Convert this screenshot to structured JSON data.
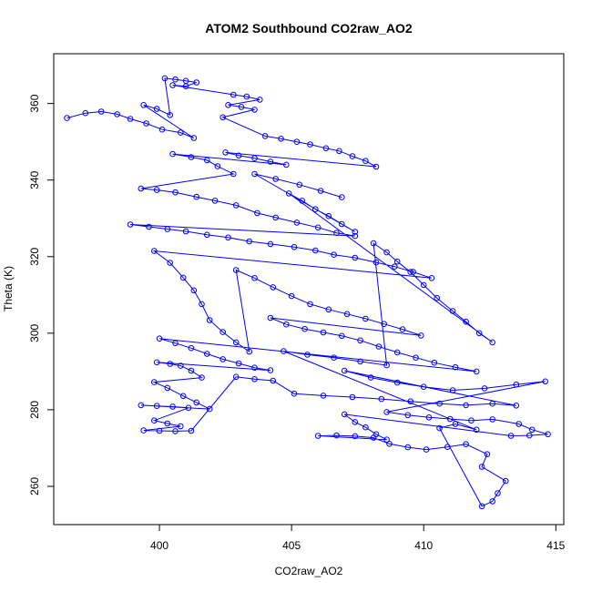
{
  "chart_data": {
    "type": "scatter",
    "title": "ATOM2 Southbound CO2raw_AO2",
    "xlabel": "CO2raw_AO2",
    "ylabel": "Theta (K)",
    "xlim": [
      396,
      415.3
    ],
    "ylim": [
      250,
      373
    ],
    "xticks": [
      400,
      405,
      410,
      415
    ],
    "yticks": [
      260,
      280,
      300,
      320,
      340,
      360
    ],
    "grid": false,
    "legend": "none",
    "marker": "open-circle",
    "connected": true,
    "series": [
      {
        "color": "#0000ff",
        "points": [
          [
            396.5,
            356.2
          ],
          [
            397.2,
            357.5
          ],
          [
            397.8,
            357.9
          ],
          [
            398.4,
            357.2
          ],
          [
            398.9,
            356.0
          ],
          [
            399.5,
            354.8
          ],
          [
            400.1,
            353.2
          ],
          [
            400.8,
            352.4
          ],
          [
            401.3,
            351.0
          ],
          [
            399.4,
            359.6
          ],
          [
            399.9,
            358.6
          ],
          [
            400.4,
            357.0
          ],
          [
            400.2,
            366.6
          ],
          [
            400.6,
            366.3
          ],
          [
            401.0,
            365.9
          ],
          [
            401.4,
            365.5
          ],
          [
            401.0,
            364.5
          ],
          [
            400.5,
            364.8
          ],
          [
            402.8,
            362.3
          ],
          [
            403.3,
            361.8
          ],
          [
            403.8,
            361.0
          ],
          [
            402.6,
            359.6
          ],
          [
            403.1,
            359.1
          ],
          [
            403.6,
            358.4
          ],
          [
            402.4,
            356.4
          ],
          [
            404.0,
            351.5
          ],
          [
            404.6,
            350.8
          ],
          [
            405.2,
            350.0
          ],
          [
            405.7,
            349.3
          ],
          [
            406.3,
            348.3
          ],
          [
            406.8,
            347.6
          ],
          [
            407.3,
            346.2
          ],
          [
            407.8,
            345.0
          ],
          [
            408.2,
            343.5
          ],
          [
            402.5,
            347.2
          ],
          [
            403.0,
            346.4
          ],
          [
            403.6,
            345.7
          ],
          [
            404.2,
            344.8
          ],
          [
            404.8,
            344.0
          ],
          [
            400.5,
            346.8
          ],
          [
            401.2,
            346.0
          ],
          [
            401.8,
            345.2
          ],
          [
            402.2,
            343.6
          ],
          [
            402.8,
            341.6
          ],
          [
            399.3,
            337.8
          ],
          [
            399.9,
            337.4
          ],
          [
            400.6,
            336.8
          ],
          [
            401.4,
            335.6
          ],
          [
            402.1,
            334.6
          ],
          [
            402.9,
            333.4
          ],
          [
            403.7,
            331.4
          ],
          [
            404.4,
            330.2
          ],
          [
            405.2,
            328.9
          ],
          [
            406.0,
            327.6
          ],
          [
            406.7,
            326.2
          ],
          [
            407.4,
            325.4
          ],
          [
            398.9,
            328.4
          ],
          [
            399.6,
            327.8
          ],
          [
            400.3,
            327.2
          ],
          [
            401.0,
            326.6
          ],
          [
            401.8,
            325.7
          ],
          [
            402.6,
            325.0
          ],
          [
            403.4,
            324.0
          ],
          [
            404.2,
            323.3
          ],
          [
            405.1,
            322.5
          ],
          [
            405.9,
            321.6
          ],
          [
            406.6,
            320.5
          ],
          [
            407.4,
            319.7
          ],
          [
            408.2,
            318.5
          ],
          [
            408.9,
            317.4
          ],
          [
            409.6,
            316.0
          ],
          [
            410.3,
            314.4
          ],
          [
            399.8,
            321.5
          ],
          [
            400.4,
            318.4
          ],
          [
            400.9,
            314.5
          ],
          [
            401.3,
            311.2
          ],
          [
            401.6,
            307.6
          ],
          [
            401.9,
            303.4
          ],
          [
            402.4,
            300.3
          ],
          [
            402.9,
            297.6
          ],
          [
            403.4,
            295.2
          ],
          [
            402.9,
            316.5
          ],
          [
            403.6,
            314.4
          ],
          [
            404.3,
            312.0
          ],
          [
            405.0,
            309.7
          ],
          [
            405.7,
            307.6
          ],
          [
            406.4,
            306.2
          ],
          [
            407.1,
            305.0
          ],
          [
            407.8,
            303.8
          ],
          [
            408.5,
            302.4
          ],
          [
            409.2,
            301.0
          ],
          [
            409.9,
            299.4
          ],
          [
            404.2,
            304.0
          ],
          [
            404.8,
            302.3
          ],
          [
            405.5,
            301.1
          ],
          [
            406.2,
            300.2
          ],
          [
            406.9,
            299.3
          ],
          [
            407.6,
            298.1
          ],
          [
            408.3,
            296.5
          ],
          [
            409.0,
            295.0
          ],
          [
            409.7,
            293.6
          ],
          [
            410.4,
            292.3
          ],
          [
            411.2,
            291.1
          ],
          [
            412.0,
            290.0
          ],
          [
            400.0,
            298.6
          ],
          [
            400.6,
            297.4
          ],
          [
            401.2,
            296.1
          ],
          [
            401.8,
            294.6
          ],
          [
            402.4,
            293.2
          ],
          [
            403.0,
            292.1
          ],
          [
            403.6,
            291.0
          ],
          [
            404.2,
            290.3
          ],
          [
            399.9,
            292.4
          ],
          [
            400.4,
            292.0
          ],
          [
            400.8,
            291.5
          ],
          [
            401.2,
            290.2
          ],
          [
            401.6,
            288.4
          ],
          [
            399.8,
            287.2
          ],
          [
            400.3,
            285.7
          ],
          [
            400.9,
            283.6
          ],
          [
            401.4,
            281.9
          ],
          [
            401.9,
            280.2
          ],
          [
            399.3,
            281.2
          ],
          [
            399.9,
            281.0
          ],
          [
            400.5,
            280.8
          ],
          [
            401.1,
            280.5
          ],
          [
            399.8,
            277.2
          ],
          [
            400.3,
            276.4
          ],
          [
            400.8,
            275.7
          ],
          [
            399.4,
            274.6
          ],
          [
            400.0,
            274.5
          ],
          [
            400.6,
            274.4
          ],
          [
            401.2,
            274.5
          ],
          [
            402.9,
            288.6
          ],
          [
            403.6,
            288.0
          ],
          [
            404.3,
            287.6
          ],
          [
            405.1,
            284.2
          ],
          [
            406.2,
            283.7
          ],
          [
            407.3,
            283.3
          ],
          [
            408.4,
            282.8
          ],
          [
            409.5,
            282.2
          ],
          [
            410.6,
            281.6
          ],
          [
            411.6,
            281.2
          ],
          [
            412.6,
            281.6
          ],
          [
            413.5,
            281.1
          ],
          [
            407.0,
            290.2
          ],
          [
            408.0,
            288.4
          ],
          [
            409.0,
            287.1
          ],
          [
            410.0,
            286.0
          ],
          [
            411.1,
            285.1
          ],
          [
            412.3,
            285.6
          ],
          [
            413.5,
            286.6
          ],
          [
            414.6,
            287.4
          ],
          [
            408.6,
            279.4
          ],
          [
            409.4,
            278.6
          ],
          [
            410.2,
            278.0
          ],
          [
            411.0,
            277.6
          ],
          [
            411.8,
            277.2
          ],
          [
            412.6,
            277.5
          ],
          [
            413.6,
            276.3
          ],
          [
            414.1,
            274.8
          ],
          [
            414.7,
            273.6
          ],
          [
            414.0,
            273.3
          ],
          [
            413.3,
            273.2
          ],
          [
            407.0,
            278.8
          ],
          [
            407.4,
            276.8
          ],
          [
            407.8,
            275.4
          ],
          [
            408.2,
            273.6
          ],
          [
            408.6,
            272.2
          ],
          [
            406.0,
            273.2
          ],
          [
            406.7,
            273.3
          ],
          [
            407.4,
            273.1
          ],
          [
            408.1,
            272.7
          ],
          [
            408.7,
            271.1
          ],
          [
            409.4,
            270.2
          ],
          [
            410.1,
            269.6
          ],
          [
            410.9,
            270.3
          ],
          [
            411.6,
            271.0
          ],
          [
            412.4,
            268.4
          ],
          [
            412.2,
            265.1
          ],
          [
            413.1,
            261.4
          ],
          [
            412.8,
            258.2
          ],
          [
            412.6,
            256.1
          ],
          [
            412.2,
            254.8
          ],
          [
            410.6,
            275.2
          ],
          [
            411.2,
            276.3
          ],
          [
            412.0,
            274.8
          ],
          [
            404.7,
            295.3
          ],
          [
            405.6,
            294.4
          ],
          [
            406.6,
            293.6
          ],
          [
            407.6,
            292.6
          ],
          [
            408.6,
            291.6
          ],
          [
            408.1,
            323.5
          ],
          [
            408.6,
            321.1
          ],
          [
            409.0,
            318.7
          ],
          [
            409.5,
            316.0
          ],
          [
            410.0,
            312.6
          ],
          [
            410.5,
            309.2
          ],
          [
            411.1,
            305.8
          ],
          [
            411.6,
            303.0
          ],
          [
            412.1,
            300.0
          ],
          [
            412.6,
            297.6
          ],
          [
            404.9,
            336.5
          ],
          [
            405.4,
            334.6
          ],
          [
            405.9,
            332.4
          ],
          [
            406.4,
            330.6
          ],
          [
            406.9,
            328.5
          ],
          [
            407.4,
            326.5
          ],
          [
            403.6,
            341.6
          ],
          [
            404.4,
            340.3
          ],
          [
            405.3,
            338.8
          ],
          [
            406.1,
            337.2
          ],
          [
            406.9,
            335.5
          ]
        ]
      }
    ]
  }
}
